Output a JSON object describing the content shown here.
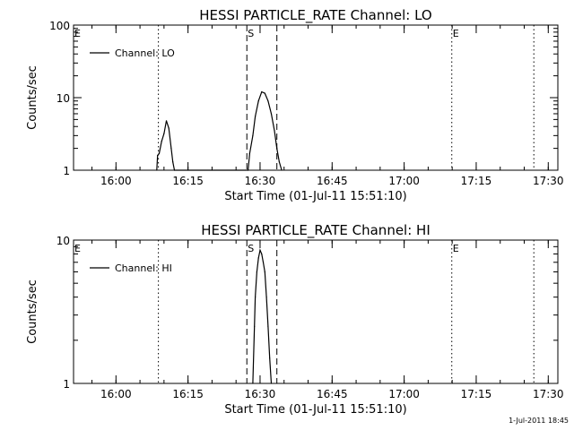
{
  "chart_data": [
    {
      "type": "line",
      "title": "HESSI PARTICLE_RATE Channel: LO",
      "xlabel": "Start Time (01-Jul-11 15:51:10)",
      "ylabel": "Counts/sec",
      "yscale": "log",
      "ylim": [
        1,
        100
      ],
      "xlim": [
        "15:51:10",
        "17:32:00"
      ],
      "x_ticks": [
        "16:00",
        "16:15",
        "16:30",
        "16:45",
        "17:00",
        "17:15",
        "17:30"
      ],
      "y_ticks": [
        "1",
        "10",
        "100"
      ],
      "legend": {
        "placement": "top-left",
        "entries": [
          "Channel: LO"
        ]
      },
      "grid": false,
      "series": [
        {
          "name": "Channel: LO",
          "x": [
            "16:08:30",
            "16:08:40",
            "16:09:00",
            "16:09:30",
            "16:10:00",
            "16:10:30",
            "16:11:00",
            "16:11:30",
            "16:11:50",
            "16:12:10",
            "16:27:30",
            "16:27:50",
            "16:28:30",
            "16:29:00",
            "16:29:40",
            "16:30:20",
            "16:31:00",
            "16:31:40",
            "16:32:20",
            "16:33:00",
            "16:33:30",
            "16:34:00",
            "16:34:30"
          ],
          "y": [
            1.0,
            1.6,
            1.7,
            2.5,
            3.2,
            4.8,
            3.8,
            2.0,
            1.3,
            1.0,
            1.0,
            1.7,
            3.0,
            5.5,
            9.0,
            12.0,
            11.5,
            9.0,
            6.0,
            3.5,
            2.0,
            1.3,
            1.0
          ]
        }
      ],
      "markers": [
        {
          "label": "E",
          "time": "15:51:10",
          "style": "dotted"
        },
        {
          "label": "",
          "time": "16:08:50",
          "style": "dotted"
        },
        {
          "label": "S",
          "time": "16:27:15",
          "style": "dashed"
        },
        {
          "label": "",
          "time": "16:33:30",
          "style": "dashed"
        },
        {
          "label": "E",
          "time": "17:09:55",
          "style": "dotted"
        },
        {
          "label": "",
          "time": "17:27:00",
          "style": "dotted"
        }
      ]
    },
    {
      "type": "line",
      "title": "HESSI PARTICLE_RATE Channel: HI",
      "xlabel": "Start Time (01-Jul-11 15:51:10)",
      "ylabel": "Counts/sec",
      "yscale": "log",
      "ylim": [
        1,
        10
      ],
      "xlim": [
        "15:51:10",
        "17:32:00"
      ],
      "x_ticks": [
        "16:00",
        "16:15",
        "16:30",
        "16:45",
        "17:00",
        "17:15",
        "17:30"
      ],
      "y_ticks": [
        "1",
        "10"
      ],
      "legend": {
        "placement": "top-left",
        "entries": [
          "Channel: HI"
        ]
      },
      "grid": false,
      "series": [
        {
          "name": "Channel: HI",
          "x": [
            "16:28:30",
            "16:28:50",
            "16:29:00",
            "16:29:20",
            "16:29:40",
            "16:30:00",
            "16:30:20",
            "16:30:40",
            "16:31:00",
            "16:31:20",
            "16:31:40",
            "16:32:00",
            "16:32:20"
          ],
          "y": [
            1.0,
            2.5,
            4.0,
            6.0,
            7.5,
            8.5,
            8.0,
            7.0,
            6.0,
            4.0,
            2.5,
            1.5,
            1.0
          ]
        }
      ],
      "markers": [
        {
          "label": "E",
          "time": "15:51:10",
          "style": "dotted"
        },
        {
          "label": "",
          "time": "16:08:50",
          "style": "dotted"
        },
        {
          "label": "S",
          "time": "16:27:15",
          "style": "dashed"
        },
        {
          "label": "",
          "time": "16:33:30",
          "style": "dashed"
        },
        {
          "label": "E",
          "time": "17:09:55",
          "style": "dotted"
        },
        {
          "label": "",
          "time": "17:27:00",
          "style": "dotted"
        }
      ]
    }
  ],
  "footer": {
    "timestamp": "1-Jul-2011 18:45"
  }
}
